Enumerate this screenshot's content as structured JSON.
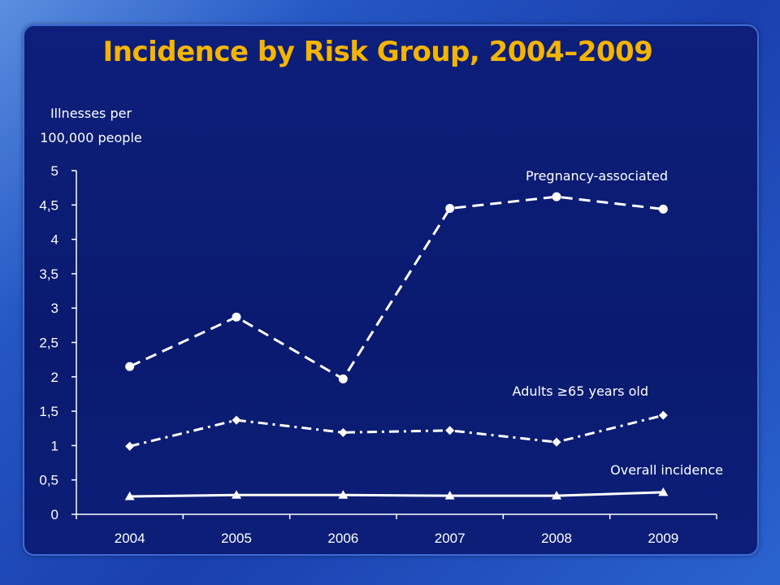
{
  "chart_data": {
    "type": "line",
    "title": "Incidence by Risk Group, 2004–2009",
    "ylabel": "Illnesses per 100,000 people",
    "ylabel_lines": [
      "Illnesses per",
      "100,000 people"
    ],
    "xlabel": "",
    "categories": [
      "2004",
      "2005",
      "2006",
      "2007",
      "2008",
      "2009"
    ],
    "ylim": [
      0,
      5
    ],
    "yticks": [
      "0",
      "0,5",
      "1",
      "1,5",
      "2",
      "2,5",
      "3",
      "3,5",
      "4",
      "4,5",
      "5"
    ],
    "grid": false,
    "series": [
      {
        "name": "Pregnancy-associated",
        "values": [
          2.15,
          2.87,
          1.97,
          4.45,
          4.62,
          4.44
        ],
        "marker": "circle",
        "dash": "dashed",
        "color": "#ffffff"
      },
      {
        "name": "Adults ≥65 years old",
        "values": [
          0.99,
          1.37,
          1.19,
          1.22,
          1.05,
          1.44
        ],
        "marker": "diamond",
        "dash": "dash-dot",
        "color": "#ffffff"
      },
      {
        "name": "Overall incidence",
        "values": [
          0.26,
          0.28,
          0.28,
          0.27,
          0.27,
          0.32
        ],
        "marker": "triangle",
        "dash": "solid",
        "color": "#ffffff"
      }
    ]
  },
  "colors": {
    "title": "#f5b400",
    "panel": "#0b1c74",
    "text": "#ffffff"
  }
}
